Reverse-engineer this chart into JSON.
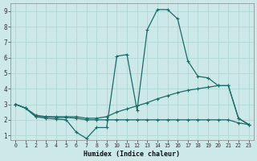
{
  "xlabel": "Humidex (Indice chaleur)",
  "xlim": [
    -0.5,
    23.5
  ],
  "ylim": [
    0.7,
    9.5
  ],
  "yticks": [
    1,
    2,
    3,
    4,
    5,
    6,
    7,
    8,
    9
  ],
  "xticks": [
    0,
    1,
    2,
    3,
    4,
    5,
    6,
    7,
    8,
    9,
    10,
    11,
    12,
    13,
    14,
    15,
    16,
    17,
    18,
    19,
    20,
    21,
    22,
    23
  ],
  "bg_color": "#cce8e8",
  "grid_color": "#b0d8d5",
  "line_color": "#1a6b68",
  "lines": [
    {
      "x": [
        0,
        1,
        2,
        3,
        4,
        5,
        6,
        7,
        8,
        9,
        10,
        11,
        12,
        13,
        14,
        15,
        16,
        17,
        18,
        19,
        20,
        21,
        22,
        23
      ],
      "y": [
        3.0,
        2.75,
        2.2,
        2.1,
        2.05,
        2.0,
        1.2,
        0.8,
        1.5,
        1.5,
        6.1,
        6.2,
        2.6,
        7.8,
        9.1,
        9.1,
        8.5,
        5.8,
        4.8,
        4.7,
        4.2,
        4.2,
        2.1,
        1.7
      ]
    },
    {
      "x": [
        0,
        1,
        2,
        3,
        4,
        5,
        6,
        7,
        8,
        9,
        10,
        11,
        12,
        13,
        14,
        15,
        16,
        17,
        18,
        19,
        20,
        21,
        22,
        23
      ],
      "y": [
        3.0,
        2.75,
        2.3,
        2.2,
        2.2,
        2.2,
        2.2,
        2.1,
        2.1,
        2.2,
        2.5,
        2.7,
        2.9,
        3.1,
        3.35,
        3.55,
        3.75,
        3.9,
        4.0,
        4.1,
        4.2,
        4.2,
        2.1,
        1.7
      ]
    },
    {
      "x": [
        0,
        1,
        2,
        3,
        4,
        5,
        6,
        7,
        8,
        9,
        10,
        11,
        12,
        13,
        14,
        15,
        16,
        17,
        18,
        19,
        20,
        21,
        22,
        23
      ],
      "y": [
        3.0,
        2.75,
        2.2,
        2.2,
        2.15,
        2.15,
        2.1,
        2.0,
        2.0,
        2.0,
        2.0,
        2.0,
        2.0,
        2.0,
        2.0,
        2.0,
        2.0,
        2.0,
        2.0,
        2.0,
        2.0,
        2.0,
        1.8,
        1.7
      ]
    }
  ]
}
